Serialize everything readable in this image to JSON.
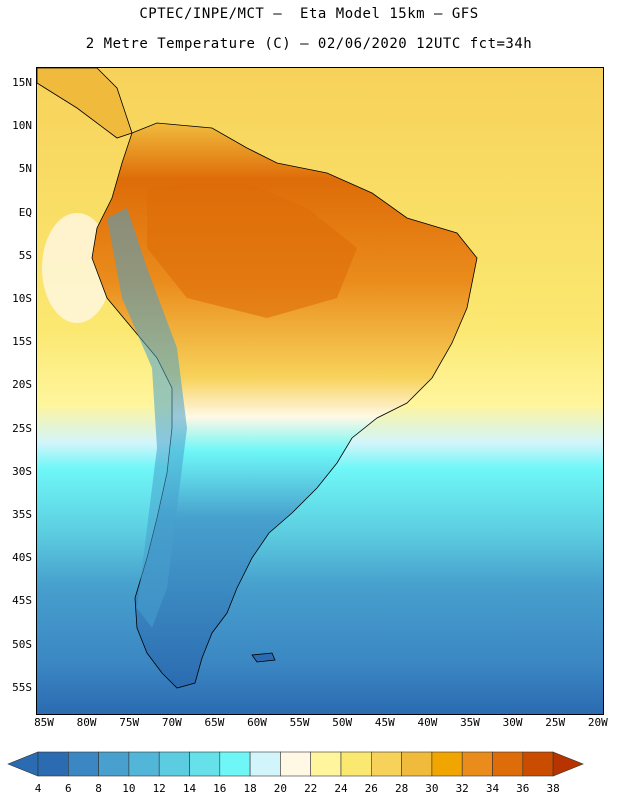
{
  "title": {
    "line1": "CPTEC/INPE/MCT –  Eta Model 15km – GFS",
    "line2": "2 Metre Temperature (C) – 02/06/2020 12UTC fct=34h"
  },
  "map": {
    "region": "South America",
    "lat_ticks": [
      "15N",
      "10N",
      "5N",
      "EQ",
      "5S",
      "10S",
      "15S",
      "20S",
      "25S",
      "30S",
      "35S",
      "40S",
      "45S",
      "50S",
      "55S"
    ],
    "lon_ticks": [
      "85W",
      "80W",
      "75W",
      "70W",
      "65W",
      "60W",
      "55W",
      "50W",
      "45W",
      "40W",
      "35W",
      "30W",
      "25W",
      "20W"
    ]
  },
  "colorbar": {
    "labels": [
      "4",
      "6",
      "8",
      "10",
      "12",
      "14",
      "16",
      "18",
      "20",
      "22",
      "24",
      "26",
      "28",
      "30",
      "32",
      "34",
      "36",
      "38"
    ],
    "colors": [
      "#2b6bb1",
      "#3b87c3",
      "#47a0cd",
      "#52b6d8",
      "#5ccde0",
      "#66e1ea",
      "#6ff7f7",
      "#d2f5fb",
      "#fff8e5",
      "#fff59c",
      "#fbe870",
      "#f7d25a",
      "#f0bb3d",
      "#f0a500",
      "#ea8c1c",
      "#de6c08",
      "#c94c00",
      "#b73300"
    ]
  },
  "chart_data": {
    "type": "heatmap",
    "title": "2 Metre Temperature (C) – 02/06/2020 12UTC fct=34h",
    "variable": "2 Metre Temperature",
    "units": "C",
    "model": "Eta Model 15km – GFS",
    "lat_range": [
      -58,
      17
    ],
    "lon_range": [
      -86,
      -20
    ],
    "color_scale_range": [
      4,
      38
    ]
  }
}
